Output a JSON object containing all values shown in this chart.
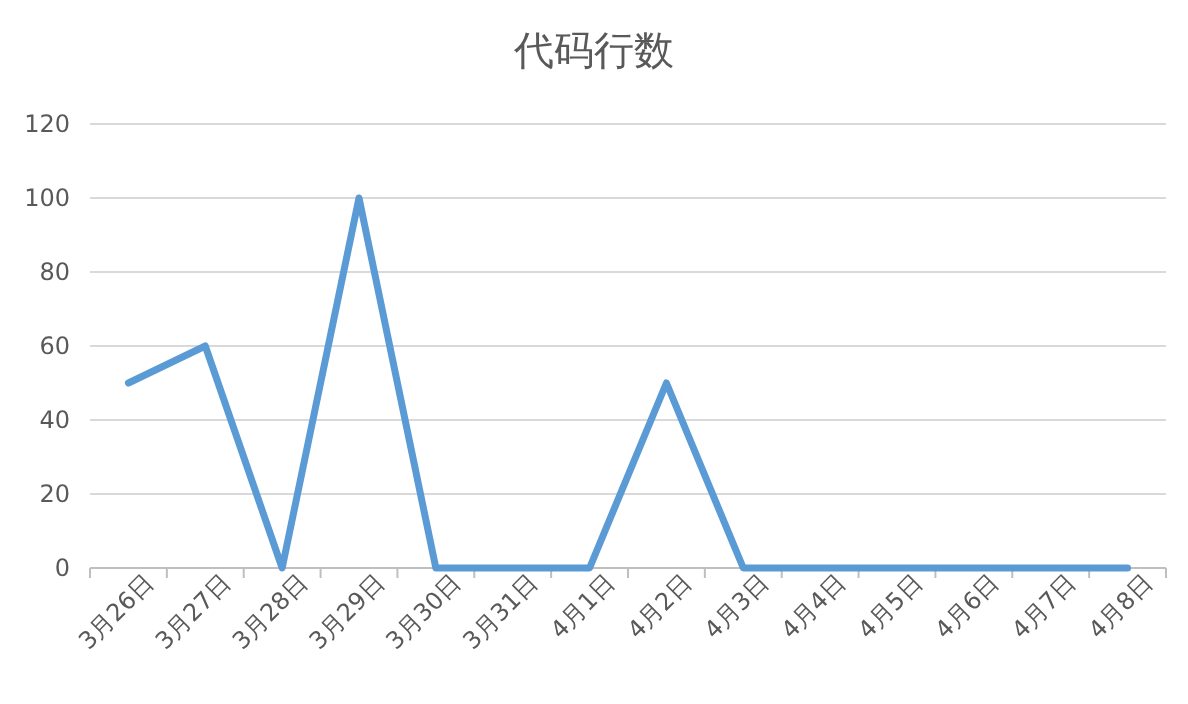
{
  "chart_data": {
    "type": "line",
    "title": "代码行数",
    "categories": [
      "3月26日",
      "3月27日",
      "3月28日",
      "3月29日",
      "3月30日",
      "3月31日",
      "4月1日",
      "4月2日",
      "4月3日",
      "4月4日",
      "4月5日",
      "4月6日",
      "4月7日",
      "4月8日"
    ],
    "series": [
      {
        "color": "#5b9bd5",
        "values": [
          50,
          60,
          0,
          100,
          0,
          0,
          0,
          50,
          0,
          0,
          0,
          0,
          0,
          0
        ]
      }
    ],
    "ylim": [
      0,
      120
    ],
    "yticks": [
      0,
      20,
      40,
      60,
      80,
      100,
      120
    ],
    "grid": "y",
    "marker": "none",
    "line_style": "solid"
  }
}
